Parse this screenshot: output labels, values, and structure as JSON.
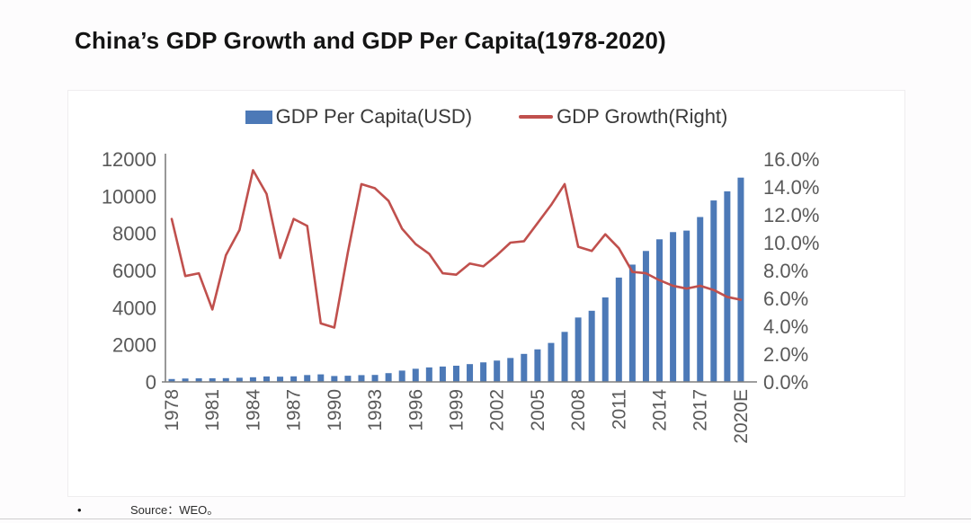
{
  "page": {
    "title": "China’s GDP Growth and GDP Per Capita(1978-2020)",
    "source_bullet": "•",
    "source": "Source：WEO。"
  },
  "chart_data": {
    "type": "bar",
    "subtype": "bar-line-combo",
    "title": "China’s GDP Growth and GDP Per Capita(1978-2020)",
    "legend_position": "top",
    "grid": false,
    "categories": [
      "1978",
      "1979",
      "1980",
      "1981",
      "1982",
      "1983",
      "1984",
      "1985",
      "1986",
      "1987",
      "1988",
      "1989",
      "1990",
      "1991",
      "1992",
      "1993",
      "1994",
      "1995",
      "1996",
      "1997",
      "1998",
      "1999",
      "2000",
      "2001",
      "2002",
      "2003",
      "2004",
      "2005",
      "2006",
      "2007",
      "2008",
      "2009",
      "2010",
      "2011",
      "2012",
      "2013",
      "2014",
      "2015",
      "2016",
      "2017",
      "2018",
      "2019",
      "2020E"
    ],
    "x_tick_labels": [
      "1978",
      "1981",
      "1984",
      "1987",
      "1990",
      "1993",
      "1996",
      "1999",
      "2002",
      "2005",
      "2008",
      "2011",
      "2014",
      "2017",
      "2020E"
    ],
    "series": [
      {
        "name": "GDP Per Capita(USD)",
        "type": "bar",
        "axis": "left",
        "color": "#4c79b7",
        "values": [
          156,
          184,
          195,
          197,
          203,
          225,
          251,
          294,
          282,
          301,
          370,
          407,
          318,
          333,
          366,
          377,
          473,
          610,
          709,
          781,
          829,
          873,
          959,
          1053,
          1149,
          1289,
          1509,
          1753,
          2099,
          2694,
          3468,
          3832,
          4550,
          5618,
          6317,
          7051,
          7679,
          8067,
          8148,
          8879,
          9771,
          10262,
          11000
        ]
      },
      {
        "name": "GDP Growth(Right)",
        "type": "line",
        "axis": "right",
        "color": "#c0504d",
        "values": [
          11.7,
          7.6,
          7.8,
          5.2,
          9.1,
          10.9,
          15.2,
          13.5,
          8.9,
          11.7,
          11.2,
          4.2,
          3.9,
          9.3,
          14.2,
          13.9,
          13.0,
          11.0,
          9.9,
          9.2,
          7.8,
          7.7,
          8.5,
          8.3,
          9.1,
          10.0,
          10.1,
          11.4,
          12.7,
          14.2,
          9.7,
          9.4,
          10.6,
          9.6,
          7.9,
          7.8,
          7.3,
          6.9,
          6.7,
          6.9,
          6.6,
          6.1,
          5.9
        ]
      }
    ],
    "axes": {
      "left": {
        "min": 0,
        "max": 12000,
        "step": 2000,
        "tick_labels": [
          "0",
          "2000",
          "4000",
          "6000",
          "8000",
          "10000",
          "12000"
        ]
      },
      "right": {
        "min": 0,
        "max": 16,
        "step": 2,
        "format": "percent",
        "tick_labels": [
          "0.0%",
          "2.0%",
          "4.0%",
          "6.0%",
          "8.0%",
          "10.0%",
          "12.0%",
          "14.0%",
          "16.0%"
        ]
      }
    }
  }
}
